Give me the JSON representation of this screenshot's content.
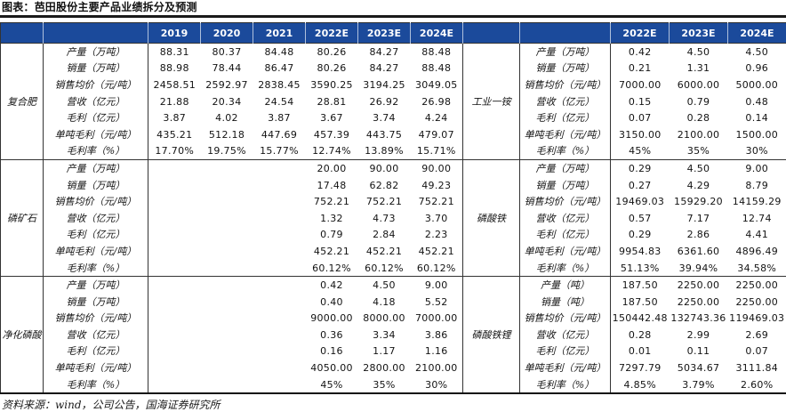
{
  "figure": {
    "title": "图表：芭田股份主要产品业绩拆分及预测",
    "source_note": "资料来源：wind，公司公告，国海证券研究所"
  },
  "colors": {
    "header_bg": "#1B4A9B",
    "header_text": "#FFFFFF",
    "grid_line": "#333333",
    "title_rule": "#1A1A1A"
  },
  "table": {
    "left": {
      "year_headers": [
        "2019",
        "2020",
        "2021",
        "2022E",
        "2023E",
        "2024E"
      ],
      "groups": [
        {
          "name": "复合肥",
          "rows": [
            {
              "label": "产量（万吨）",
              "values": [
                "88.31",
                "80.37",
                "84.48",
                "80.26",
                "84.27",
                "88.48"
              ]
            },
            {
              "label": "销量（万吨）",
              "values": [
                "88.98",
                "78.44",
                "86.47",
                "80.26",
                "84.27",
                "88.48"
              ]
            },
            {
              "label": "销售均价（元/吨）",
              "values": [
                "2458.51",
                "2592.97",
                "2838.45",
                "3590.25",
                "3194.25",
                "3049.05"
              ]
            },
            {
              "label": "营收（亿元）",
              "values": [
                "21.88",
                "20.34",
                "24.54",
                "28.81",
                "26.92",
                "26.98"
              ]
            },
            {
              "label": "毛利（亿元）",
              "values": [
                "3.87",
                "4.02",
                "3.87",
                "3.67",
                "3.74",
                "4.24"
              ]
            },
            {
              "label": "单吨毛利（元/吨）",
              "values": [
                "435.21",
                "512.18",
                "447.69",
                "457.39",
                "443.75",
                "479.07"
              ]
            },
            {
              "label": "毛利率（%）",
              "values": [
                "17.70%",
                "19.75%",
                "15.77%",
                "12.74%",
                "13.89%",
                "15.71%"
              ]
            }
          ]
        },
        {
          "name": "磷矿石",
          "rows": [
            {
              "label": "产量（万吨）",
              "values": [
                "",
                "",
                "",
                "20.00",
                "90.00",
                "90.00"
              ]
            },
            {
              "label": "销量（万吨）",
              "values": [
                "",
                "",
                "",
                "17.48",
                "62.82",
                "49.23"
              ]
            },
            {
              "label": "销售均价（元/吨）",
              "values": [
                "",
                "",
                "",
                "752.21",
                "752.21",
                "752.21"
              ]
            },
            {
              "label": "营收（亿元）",
              "values": [
                "",
                "",
                "",
                "1.32",
                "4.73",
                "3.70"
              ]
            },
            {
              "label": "毛利（亿元）",
              "values": [
                "",
                "",
                "",
                "0.79",
                "2.84",
                "2.23"
              ]
            },
            {
              "label": "单吨毛利（元/吨）",
              "values": [
                "",
                "",
                "",
                "452.21",
                "452.21",
                "452.21"
              ]
            },
            {
              "label": "毛利率（%）",
              "values": [
                "",
                "",
                "",
                "60.12%",
                "60.12%",
                "60.12%"
              ]
            }
          ]
        },
        {
          "name": "净化磷酸",
          "rows": [
            {
              "label": "产量（万吨）",
              "values": [
                "",
                "",
                "",
                "0.42",
                "4.50",
                "9.00"
              ]
            },
            {
              "label": "销量（万吨）",
              "values": [
                "",
                "",
                "",
                "0.40",
                "4.18",
                "5.52"
              ]
            },
            {
              "label": "销售均价（元/吨）",
              "values": [
                "",
                "",
                "",
                "9000.00",
                "8000.00",
                "7000.00"
              ]
            },
            {
              "label": "营收（亿元）",
              "values": [
                "",
                "",
                "",
                "0.36",
                "3.34",
                "3.86"
              ]
            },
            {
              "label": "毛利（亿元）",
              "values": [
                "",
                "",
                "",
                "0.16",
                "1.17",
                "1.16"
              ]
            },
            {
              "label": "单吨毛利（元/吨）",
              "values": [
                "",
                "",
                "",
                "4050.00",
                "2800.00",
                "2100.00"
              ]
            },
            {
              "label": "毛利率（%）",
              "values": [
                "",
                "",
                "",
                "45%",
                "35%",
                "30%"
              ]
            }
          ]
        }
      ]
    },
    "right": {
      "year_headers": [
        "2022E",
        "2023E",
        "2024E"
      ],
      "groups": [
        {
          "name": "工业一铵",
          "rows": [
            {
              "label": "产量（万吨）",
              "values": [
                "0.42",
                "4.50",
                "4.50"
              ]
            },
            {
              "label": "销量（万吨）",
              "values": [
                "0.21",
                "1.31",
                "0.96"
              ]
            },
            {
              "label": "销售均价（元/吨）",
              "values": [
                "7000.00",
                "6000.00",
                "5000.00"
              ]
            },
            {
              "label": "营收（亿元）",
              "values": [
                "0.15",
                "0.79",
                "0.48"
              ]
            },
            {
              "label": "毛利（亿元）",
              "values": [
                "0.07",
                "0.28",
                "0.14"
              ]
            },
            {
              "label": "单吨毛利（元/吨）",
              "values": [
                "3150.00",
                "2100.00",
                "1500.00"
              ]
            },
            {
              "label": "毛利率（%）",
              "values": [
                "45%",
                "35%",
                "30%"
              ]
            }
          ]
        },
        {
          "name": "磷酸铁",
          "rows": [
            {
              "label": "产量（万吨）",
              "values": [
                "0.29",
                "4.50",
                "9.00"
              ]
            },
            {
              "label": "销量（万吨）",
              "values": [
                "0.27",
                "4.29",
                "8.79"
              ]
            },
            {
              "label": "销售均价（元/吨）",
              "values": [
                "19469.03",
                "15929.20",
                "14159.29"
              ]
            },
            {
              "label": "营收（亿元）",
              "values": [
                "0.57",
                "7.17",
                "12.74"
              ]
            },
            {
              "label": "毛利（亿元）",
              "values": [
                "0.29",
                "2.86",
                "4.41"
              ]
            },
            {
              "label": "单吨毛利（元/吨）",
              "values": [
                "9954.83",
                "6361.60",
                "4896.49"
              ]
            },
            {
              "label": "毛利率（%）",
              "values": [
                "51.13%",
                "39.94%",
                "34.58%"
              ]
            }
          ]
        },
        {
          "name": "磷酸铁锂",
          "rows": [
            {
              "label": "产量（吨）",
              "values": [
                "187.50",
                "2250.00",
                "2250.00"
              ]
            },
            {
              "label": "销量（吨）",
              "values": [
                "187.50",
                "2250.00",
                "2250.00"
              ]
            },
            {
              "label": "销售均价（元/吨）",
              "values": [
                "150442.48",
                "132743.36",
                "119469.03"
              ]
            },
            {
              "label": "营收（亿元）",
              "values": [
                "0.28",
                "2.99",
                "2.69"
              ]
            },
            {
              "label": "毛利（亿元）",
              "values": [
                "0.01",
                "0.11",
                "0.07"
              ]
            },
            {
              "label": "单吨毛利（元/吨）",
              "values": [
                "7297.79",
                "5034.67",
                "3111.84"
              ]
            },
            {
              "label": "毛利率（%）",
              "values": [
                "4.85%",
                "3.79%",
                "2.60%"
              ]
            }
          ]
        }
      ]
    }
  }
}
